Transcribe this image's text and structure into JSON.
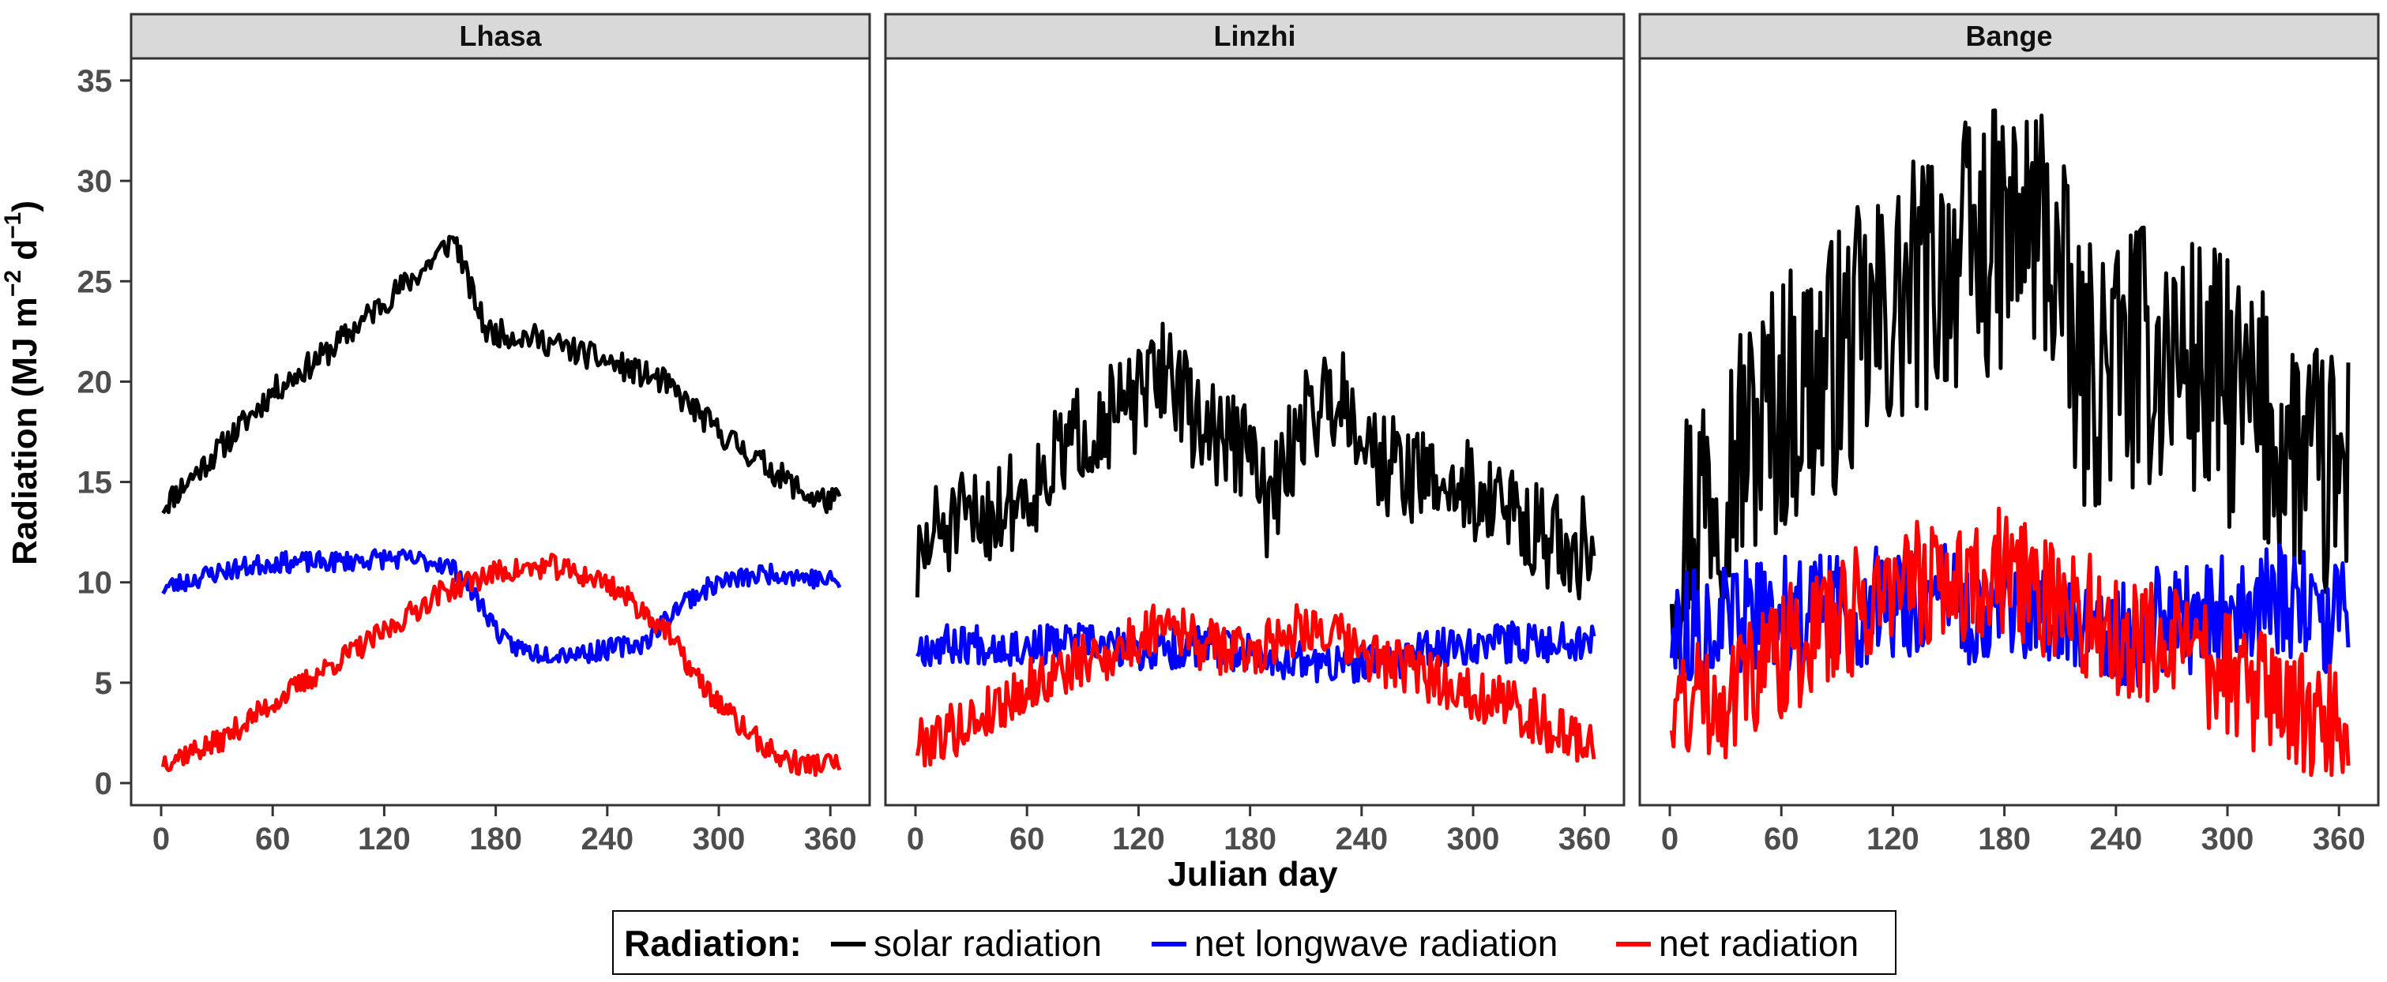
{
  "chart_data": {
    "type": "line",
    "facet_by": "station",
    "xlabel": "Julian day",
    "ylabel": "Radiation (MJ m⁻² d⁻¹)",
    "ylabel_parts": [
      "Radiation (MJ m",
      "−2",
      " d",
      "−1",
      ")"
    ],
    "xlim": [
      1,
      365
    ],
    "ylim": [
      0,
      35
    ],
    "x_ticks": [
      0,
      60,
      120,
      180,
      240,
      300,
      360
    ],
    "y_ticks": [
      0,
      5,
      10,
      15,
      20,
      25,
      30,
      35
    ],
    "grid": false,
    "legend": {
      "title": "Radiation:",
      "position": "bottom",
      "entries": [
        {
          "name": "solar radiation",
          "color": "#000000"
        },
        {
          "name": "net longwave radiation",
          "color": "#0000FF"
        },
        {
          "name": "net radiation",
          "color": "#FF0000"
        }
      ]
    },
    "panels": [
      {
        "title": "Lhasa",
        "series": [
          {
            "name": "solar radiation",
            "color": "#000000",
            "noise": 0.4,
            "seed": 11,
            "x": [
              1,
              30,
              60,
              90,
              120,
              140,
              158,
              165,
              175,
              200,
              240,
              270,
              300,
              330,
              350,
              365
            ],
            "y": [
              13.8,
              16.5,
              19.5,
              21.5,
              24.0,
              25.5,
              27.2,
              25.0,
              22.5,
              22.2,
              21.0,
              20.0,
              17.5,
              15.5,
              14.2,
              14.0
            ]
          },
          {
            "name": "net longwave radiation",
            "color": "#0000FF",
            "noise": 0.3,
            "seed": 23,
            "x": [
              1,
              30,
              60,
              90,
              120,
              150,
              160,
              175,
              185,
              200,
              230,
              260,
              280,
              300,
              330,
              365
            ],
            "y": [
              9.7,
              10.5,
              11.0,
              11.0,
              11.2,
              11.0,
              10.5,
              8.5,
              7.0,
              6.5,
              6.5,
              7.0,
              9.0,
              10.0,
              10.5,
              10.0
            ]
          },
          {
            "name": "net radiation",
            "color": "#FF0000",
            "noise": 0.35,
            "seed": 37,
            "x": [
              1,
              30,
              60,
              90,
              120,
              150,
              180,
              210,
              240,
              270,
              290,
              310,
              330,
              345,
              365
            ],
            "y": [
              1.1,
              2.0,
              4.0,
              5.8,
              7.5,
              9.5,
              10.5,
              10.8,
              10.0,
              7.8,
              5.0,
              3.0,
              1.4,
              0.9,
              1.0
            ]
          }
        ]
      },
      {
        "title": "Linzhi",
        "series": [
          {
            "name": "solar radiation",
            "color": "#000000",
            "noise": 1.5,
            "seed": 51,
            "x": [
              1,
              10,
              30,
              60,
              90,
              120,
              135,
              150,
              180,
              190,
              210,
              230,
              250,
              280,
              300,
              330,
              355,
              365
            ],
            "y": [
              10.5,
              12.5,
              13.0,
              14.5,
              17.5,
              19.0,
              21.0,
              18.0,
              16.5,
              13.5,
              18.5,
              19.5,
              16.0,
              15.0,
              14.5,
              13.0,
              11.0,
              13.0
            ]
          },
          {
            "name": "net longwave radiation",
            "color": "#0000FF",
            "noise": 0.6,
            "seed": 67,
            "x": [
              1,
              30,
              60,
              90,
              120,
              150,
              180,
              210,
              240,
              270,
              300,
              330,
              365
            ],
            "y": [
              6.8,
              7.0,
              6.8,
              7.0,
              6.5,
              6.8,
              6.5,
              6.0,
              5.8,
              6.5,
              7.0,
              7.0,
              7.2
            ]
          },
          {
            "name": "net radiation",
            "color": "#FF0000",
            "noise": 0.8,
            "seed": 79,
            "x": [
              1,
              30,
              60,
              90,
              120,
              135,
              150,
              180,
              210,
              240,
              270,
              300,
              330,
              355,
              365
            ],
            "y": [
              2.0,
              3.0,
              4.8,
              6.0,
              7.0,
              8.5,
              7.0,
              6.5,
              8.0,
              6.5,
              5.5,
              4.5,
              3.5,
              2.0,
              2.3
            ]
          }
        ]
      },
      {
        "title": "Bange",
        "series": [
          {
            "name": "solar radiation",
            "color": "#000000",
            "noise": 4.0,
            "seed": 97,
            "x": [
              1,
              20,
              40,
              60,
              90,
              120,
              150,
              180,
              200,
              210,
              220,
              240,
              270,
              300,
              330,
              350,
              365
            ],
            "y": [
              12.0,
              15.0,
              17.0,
              19.0,
              21.0,
              23.5,
              26.0,
              27.0,
              28.0,
              25.0,
              20.0,
              21.0,
              21.5,
              19.5,
              17.0,
              15.0,
              15.5
            ]
          },
          {
            "name": "net longwave radiation",
            "color": "#0000FF",
            "noise": 1.7,
            "seed": 113,
            "x": [
              1,
              30,
              60,
              90,
              120,
              150,
              180,
              210,
              240,
              270,
              300,
              330,
              365
            ],
            "y": [
              7.5,
              8.0,
              8.5,
              8.5,
              9.0,
              9.0,
              8.5,
              8.0,
              7.5,
              8.0,
              8.5,
              9.0,
              8.0
            ]
          },
          {
            "name": "net radiation",
            "color": "#FF0000",
            "noise": 1.9,
            "seed": 131,
            "x": [
              1,
              30,
              60,
              90,
              120,
              150,
              180,
              210,
              240,
              270,
              300,
              330,
              350,
              365
            ],
            "y": [
              4.0,
              4.5,
              6.5,
              8.0,
              10.0,
              10.0,
              10.5,
              9.0,
              7.5,
              6.5,
              5.5,
              4.0,
              2.5,
              3.5
            ]
          }
        ]
      }
    ]
  }
}
